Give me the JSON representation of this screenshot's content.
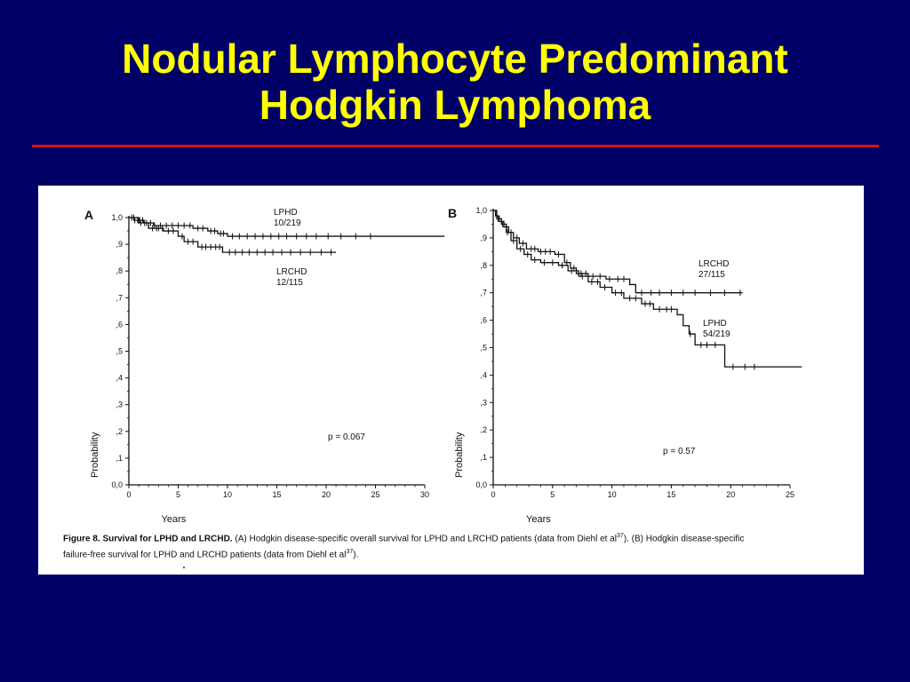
{
  "slide": {
    "title_line1": "Nodular Lymphocyte Predominant",
    "title_line2": "Hodgkin Lymphoma"
  },
  "colors": {
    "background": "#000066",
    "title": "#ffff00",
    "rule": "#e01010",
    "panel": "#ffffff",
    "ink": "#111111"
  },
  "caption": {
    "figure_label": "Figure 8. Survival for LPHD and LRCHD.",
    "text_a": " (A) Hodgkin disease-specific overall survival for LPHD and LRCHD patients (data from Diehl et al",
    "ref_a": "37",
    "text_b": "). (B) Hodgkin disease-specific",
    "text_c": "failure-free survival for LPHD and LRCHD patients (data from Diehl et al",
    "ref_c": "37",
    "text_d": ")."
  },
  "chart_data": [
    {
      "type": "line",
      "panel_label": "A",
      "title": "",
      "xlabel": "Years",
      "ylabel": "Probability",
      "xlim": [
        0,
        30
      ],
      "ylim": [
        0,
        1
      ],
      "x_ticks": [
        "0",
        "5",
        "10",
        "15",
        "20",
        "25",
        "30"
      ],
      "y_ticks": [
        "0,0",
        ",1",
        ",2",
        ",3",
        ",4",
        ",5",
        ",6",
        ",7",
        ",8",
        ",9",
        "1,0"
      ],
      "p_value": "p = 0.067",
      "series": [
        {
          "name": "LPHD",
          "label_line1": "LPHD",
          "label_line2": "10/219",
          "steps": [
            [
              0,
              1.0
            ],
            [
              0.5,
              0.99
            ],
            [
              1.5,
              0.98
            ],
            [
              2.5,
              0.97
            ],
            [
              6.5,
              0.96
            ],
            [
              8.0,
              0.95
            ],
            [
              9.0,
              0.94
            ],
            [
              10.0,
              0.93
            ],
            [
              32,
              0.93
            ]
          ],
          "censor_x": [
            0.3,
            0.6,
            0.9,
            1.1,
            1.4,
            1.8,
            2.2,
            2.6,
            3.2,
            3.8,
            4.4,
            5.0,
            5.6,
            6.2,
            7.0,
            7.5,
            8.3,
            8.7,
            9.3,
            9.6,
            10.5,
            11.2,
            12.0,
            12.8,
            13.6,
            14.4,
            15.2,
            16.0,
            17.0,
            18.0,
            19.0,
            20.2,
            21.5,
            23.0,
            24.5
          ]
        },
        {
          "name": "LRCHD",
          "label_line1": "LRCHD",
          "label_line2": "12/115",
          "steps": [
            [
              0,
              1.0
            ],
            [
              1.0,
              0.98
            ],
            [
              2.0,
              0.96
            ],
            [
              3.5,
              0.95
            ],
            [
              5.0,
              0.93
            ],
            [
              5.6,
              0.91
            ],
            [
              7.0,
              0.89
            ],
            [
              9.5,
              0.87
            ],
            [
              21.0,
              0.87
            ]
          ],
          "censor_x": [
            0.5,
            1.2,
            1.6,
            2.4,
            2.8,
            3.0,
            3.4,
            4.0,
            4.5,
            5.4,
            6.0,
            6.5,
            7.4,
            7.8,
            8.3,
            8.8,
            9.2,
            10.2,
            10.8,
            11.5,
            12.2,
            13.0,
            13.8,
            14.6,
            15.5,
            16.4,
            17.4,
            18.4,
            19.5,
            20.5
          ]
        }
      ]
    },
    {
      "type": "line",
      "panel_label": "B",
      "title": "",
      "xlabel": "Years",
      "ylabel": "Probability",
      "xlim": [
        0,
        25
      ],
      "ylim": [
        0,
        1
      ],
      "x_ticks": [
        "0",
        "5",
        "10",
        "15",
        "20",
        "25"
      ],
      "y_ticks": [
        "0,0",
        ",1",
        ",2",
        ",3",
        ",4",
        ",5",
        ",6",
        ",7",
        ",8",
        ",9",
        "1,0"
      ],
      "p_value": "p = 0.57",
      "series": [
        {
          "name": "LRCHD",
          "label_line1": "LRCHD",
          "label_line2": "27/115",
          "steps": [
            [
              0,
              1.0
            ],
            [
              0.2,
              0.98
            ],
            [
              0.5,
              0.96
            ],
            [
              0.9,
              0.94
            ],
            [
              1.3,
              0.92
            ],
            [
              1.7,
              0.9
            ],
            [
              2.2,
              0.88
            ],
            [
              2.8,
              0.86
            ],
            [
              3.8,
              0.85
            ],
            [
              5.2,
              0.84
            ],
            [
              6.0,
              0.81
            ],
            [
              6.5,
              0.79
            ],
            [
              7.0,
              0.77
            ],
            [
              8.0,
              0.76
            ],
            [
              9.5,
              0.75
            ],
            [
              11.5,
              0.73
            ],
            [
              12.0,
              0.7
            ],
            [
              21.0,
              0.7
            ]
          ],
          "censor_x": [
            0.3,
            0.7,
            1.1,
            1.5,
            2.0,
            2.5,
            3.2,
            3.5,
            4.0,
            4.4,
            4.8,
            5.5,
            6.2,
            6.8,
            7.4,
            7.8,
            8.4,
            9.0,
            9.8,
            10.5,
            11.0,
            12.5,
            13.3,
            14.0,
            15.0,
            16.0,
            17.0,
            18.3,
            19.5,
            20.8
          ]
        },
        {
          "name": "LPHD",
          "label_line1": "LPHD",
          "label_line2": "54/219",
          "steps": [
            [
              0,
              1.0
            ],
            [
              0.3,
              0.97
            ],
            [
              0.7,
              0.95
            ],
            [
              1.1,
              0.92
            ],
            [
              1.5,
              0.89
            ],
            [
              2.0,
              0.86
            ],
            [
              2.6,
              0.84
            ],
            [
              3.2,
              0.82
            ],
            [
              4.0,
              0.81
            ],
            [
              5.5,
              0.8
            ],
            [
              6.3,
              0.78
            ],
            [
              7.2,
              0.76
            ],
            [
              8.0,
              0.74
            ],
            [
              9.0,
              0.72
            ],
            [
              10.0,
              0.7
            ],
            [
              11.0,
              0.68
            ],
            [
              12.5,
              0.66
            ],
            [
              13.5,
              0.64
            ],
            [
              15.5,
              0.62
            ],
            [
              16.0,
              0.58
            ],
            [
              16.5,
              0.55
            ],
            [
              17.0,
              0.51
            ],
            [
              19.5,
              0.43
            ],
            [
              26.0,
              0.43
            ]
          ],
          "censor_x": [
            0.4,
            0.8,
            1.2,
            1.7,
            2.3,
            2.9,
            3.5,
            4.3,
            5.0,
            5.8,
            6.6,
            7.5,
            8.3,
            8.8,
            9.4,
            10.3,
            10.8,
            11.5,
            12.0,
            12.8,
            13.2,
            14.0,
            14.6,
            15.0,
            16.6,
            17.5,
            18.0,
            18.7,
            20.2,
            21.2,
            22.0
          ]
        }
      ]
    }
  ]
}
